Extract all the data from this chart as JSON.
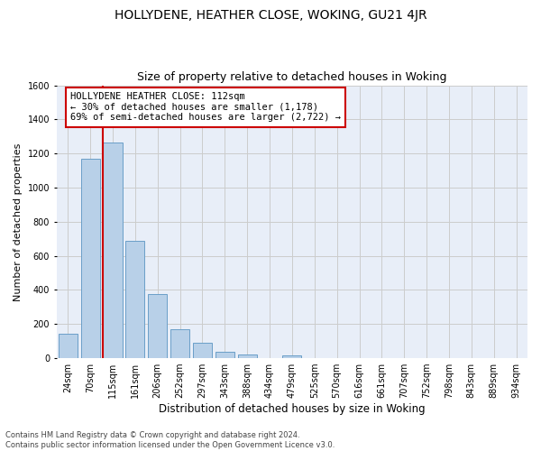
{
  "title": "HOLLYDENE, HEATHER CLOSE, WOKING, GU21 4JR",
  "subtitle": "Size of property relative to detached houses in Woking",
  "xlabel": "Distribution of detached houses by size in Woking",
  "ylabel": "Number of detached properties",
  "categories": [
    "24sqm",
    "70sqm",
    "115sqm",
    "161sqm",
    "206sqm",
    "252sqm",
    "297sqm",
    "343sqm",
    "388sqm",
    "434sqm",
    "479sqm",
    "525sqm",
    "570sqm",
    "616sqm",
    "661sqm",
    "707sqm",
    "752sqm",
    "798sqm",
    "843sqm",
    "889sqm",
    "934sqm"
  ],
  "values": [
    145,
    1170,
    1265,
    690,
    375,
    170,
    88,
    38,
    22,
    0,
    18,
    0,
    0,
    0,
    0,
    0,
    0,
    0,
    0,
    0,
    0
  ],
  "bar_color": "#b8d0e8",
  "bar_edge_color": "#6a9fc8",
  "highlight_line_color": "#cc0000",
  "annotation_text": "HOLLYDENE HEATHER CLOSE: 112sqm\n← 30% of detached houses are smaller (1,178)\n69% of semi-detached houses are larger (2,722) →",
  "annotation_box_color": "#ffffff",
  "annotation_box_edge_color": "#cc0000",
  "ylim": [
    0,
    1600
  ],
  "yticks": [
    0,
    200,
    400,
    600,
    800,
    1000,
    1200,
    1400,
    1600
  ],
  "grid_color": "#cccccc",
  "background_color": "#e8eef8",
  "footer_text": "Contains HM Land Registry data © Crown copyright and database right 2024.\nContains public sector information licensed under the Open Government Licence v3.0.",
  "title_fontsize": 10,
  "subtitle_fontsize": 9,
  "xlabel_fontsize": 8.5,
  "ylabel_fontsize": 8,
  "tick_fontsize": 7,
  "annotation_fontsize": 7.5,
  "footer_fontsize": 6
}
